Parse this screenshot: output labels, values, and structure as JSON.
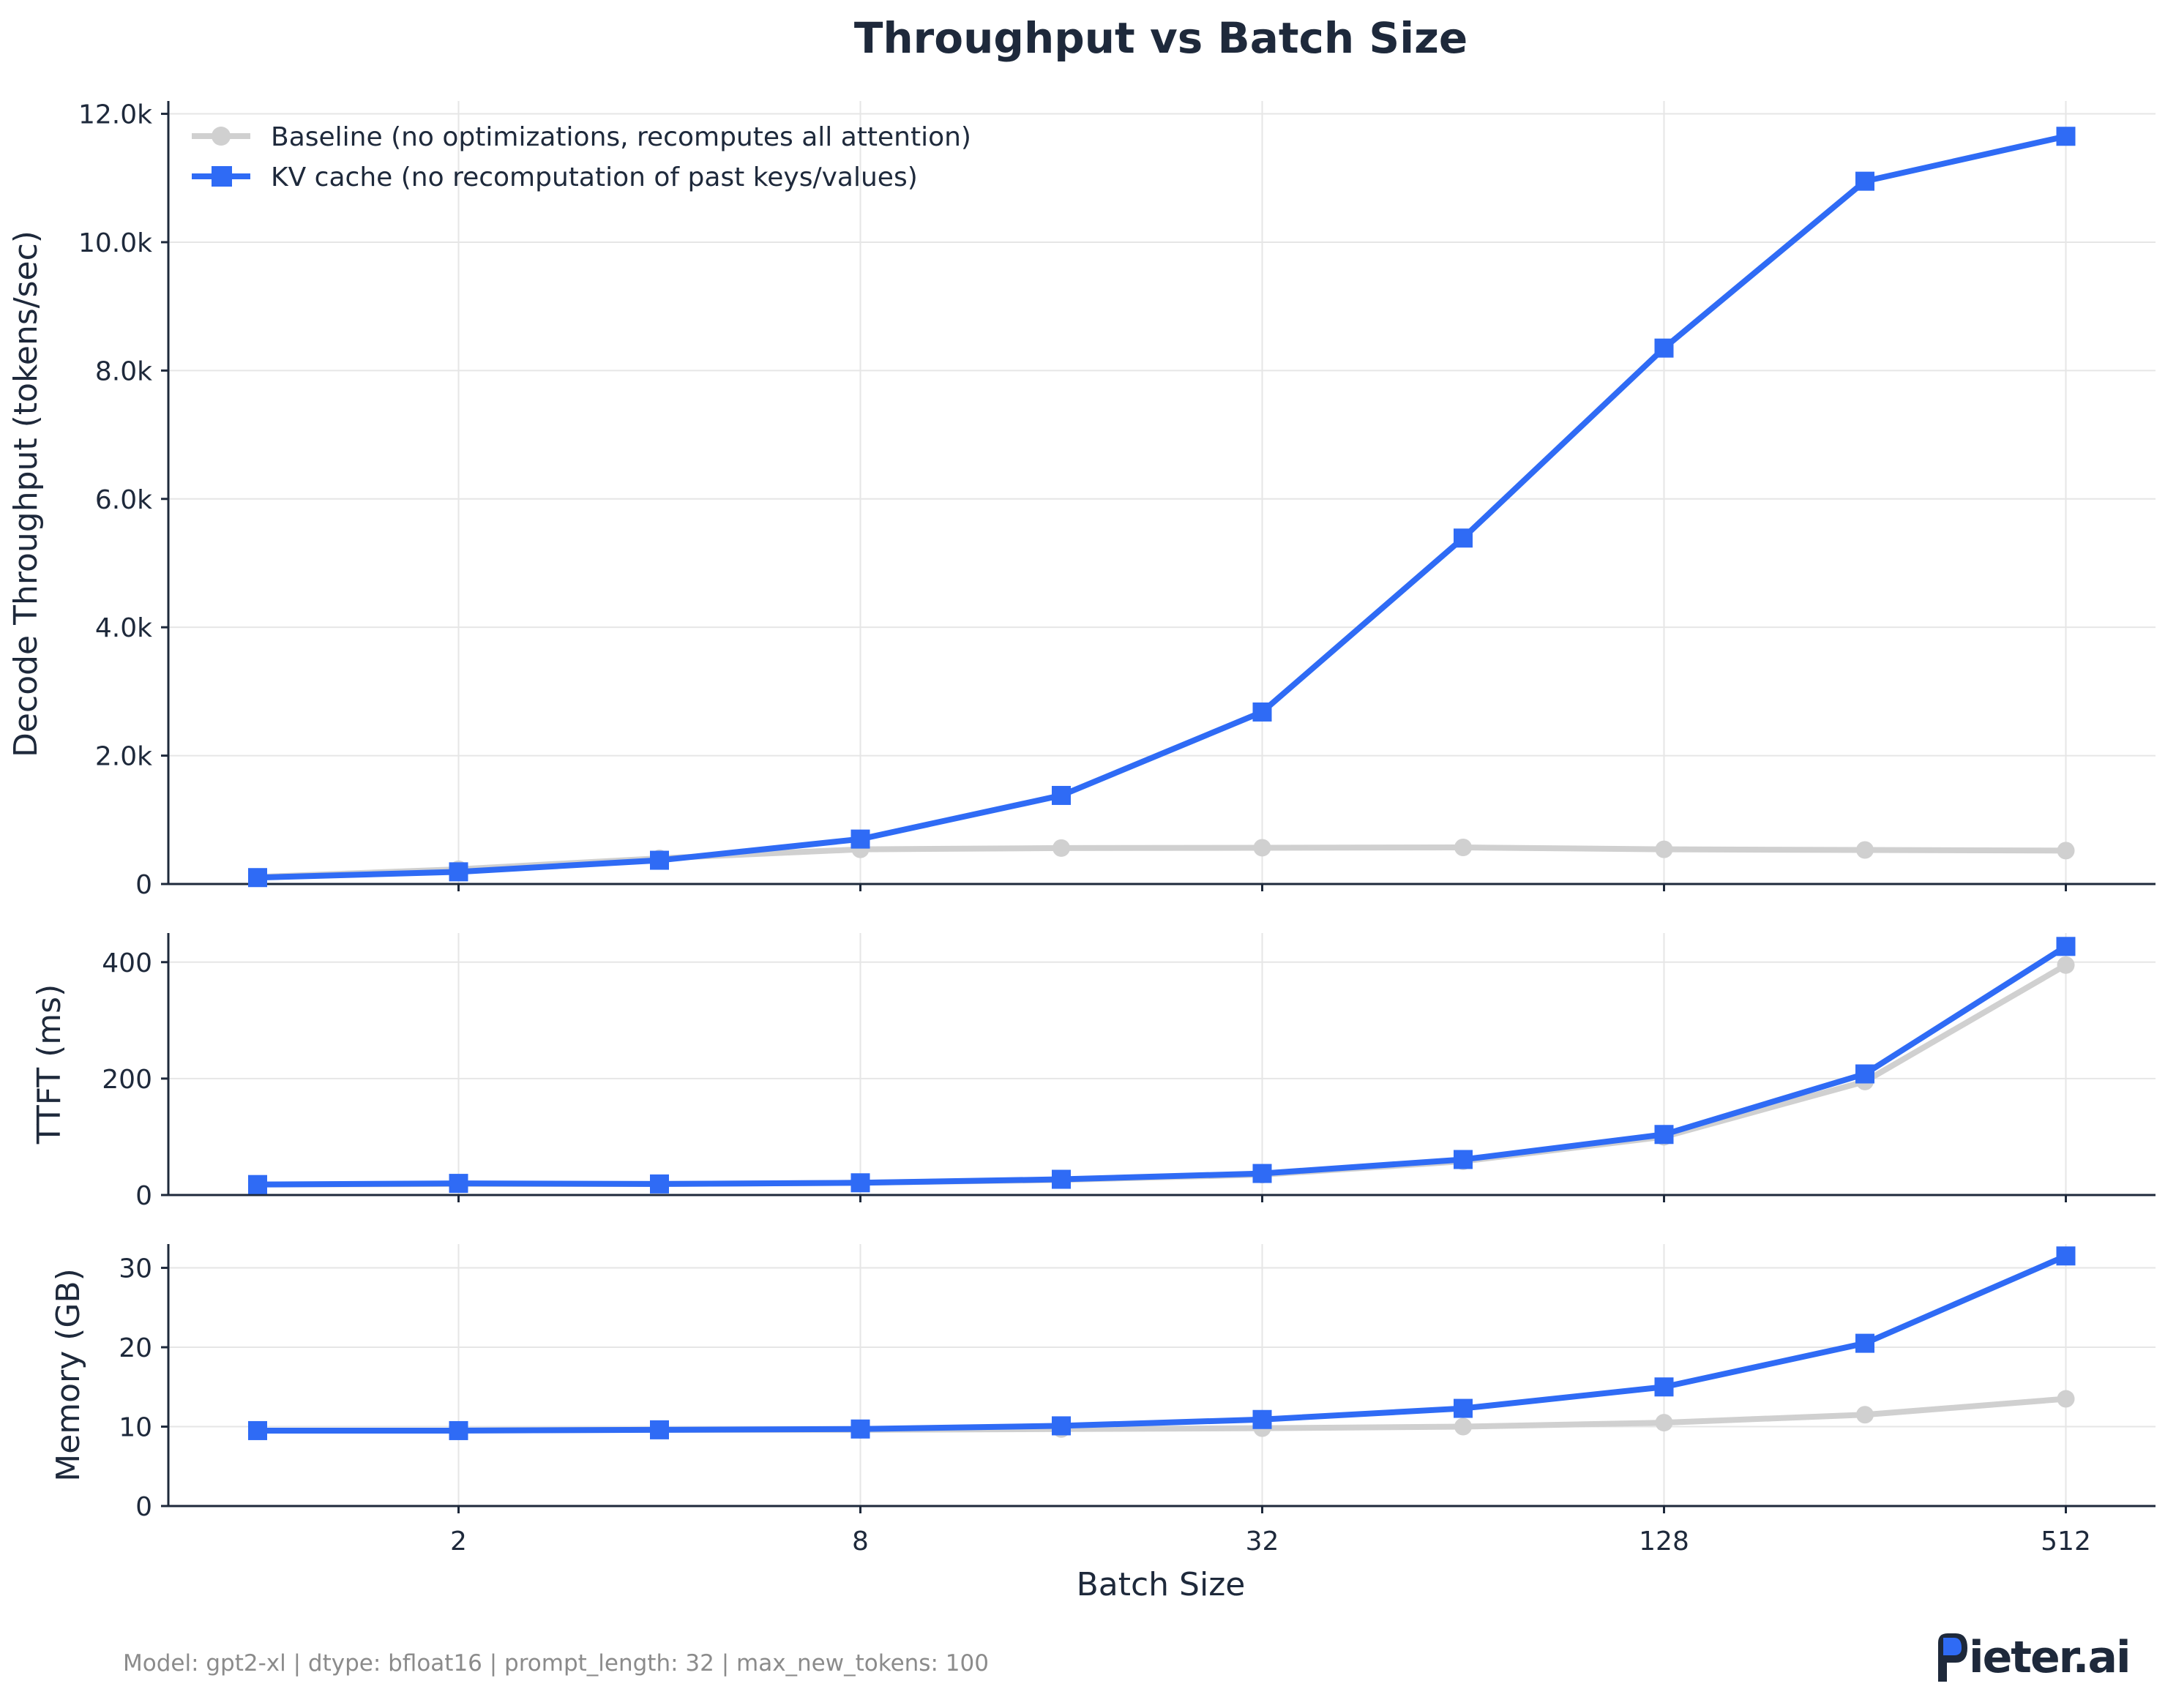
{
  "footer": "Model: gpt2-xl  |  dtype: bfloat16  |  prompt_length: 32  |  max_new_tokens: 100",
  "brand": "ieter.ai",
  "chart_data": {
    "type": "line",
    "title": "Throughput vs Batch Size",
    "xlabel": "Batch Size",
    "xscale": "log2",
    "x": [
      1,
      2,
      4,
      8,
      16,
      32,
      64,
      128,
      256,
      512
    ],
    "xticks": [
      2,
      8,
      32,
      128,
      512
    ],
    "xtick_labels": [
      "2",
      "8",
      "32",
      "128",
      "512"
    ],
    "legend": {
      "location": "top-left",
      "entries": [
        "Baseline (no optimizations, recomputes all attention)",
        "KV cache (no recomputation of past keys/values)"
      ]
    },
    "colors": {
      "baseline": "#d0d0d0",
      "kv_cache": "#2f6bf5"
    },
    "panels": [
      {
        "ylabel": "Decode Throughput (tokens/sec)",
        "ylim": [
          0,
          12200
        ],
        "yticks": [
          0,
          2000,
          4000,
          6000,
          8000,
          10000,
          12000
        ],
        "ytick_labels": [
          "0",
          "2.0k",
          "4.0k",
          "6.0k",
          "8.0k",
          "10.0k",
          "12.0k"
        ],
        "series": [
          {
            "name": "Baseline",
            "values": [
              110,
              230,
              400,
              540,
              560,
              565,
              570,
              540,
              530,
              520
            ]
          },
          {
            "name": "KV cache",
            "values": [
              100,
              190,
              370,
              700,
              1380,
              2680,
              5390,
              8350,
              10950,
              11650
            ]
          }
        ]
      },
      {
        "ylabel": "TTFT (ms)",
        "ylim": [
          0,
          450
        ],
        "yticks": [
          0,
          200,
          400
        ],
        "ytick_labels": [
          "0",
          "200",
          "400"
        ],
        "series": [
          {
            "name": "Baseline",
            "values": [
              18,
              19,
              19,
              21,
              26,
              35,
              58,
              100,
              195,
              395
            ]
          },
          {
            "name": "KV cache",
            "values": [
              18,
              20,
              19,
              21,
              27,
              37,
              61,
              104,
              208,
              427
            ]
          }
        ]
      },
      {
        "ylabel": "Memory (GB)",
        "ylim": [
          0,
          33
        ],
        "yticks": [
          0,
          10,
          20,
          30
        ],
        "ytick_labels": [
          "0",
          "10",
          "20",
          "30"
        ],
        "series": [
          {
            "name": "Baseline",
            "values": [
              9.5,
              9.5,
              9.6,
              9.6,
              9.7,
              9.8,
              10.0,
              10.5,
              11.5,
              13.5
            ]
          },
          {
            "name": "KV cache",
            "values": [
              9.5,
              9.5,
              9.6,
              9.7,
              10.1,
              10.9,
              12.3,
              15.0,
              20.5,
              31.5
            ]
          }
        ]
      }
    ]
  }
}
